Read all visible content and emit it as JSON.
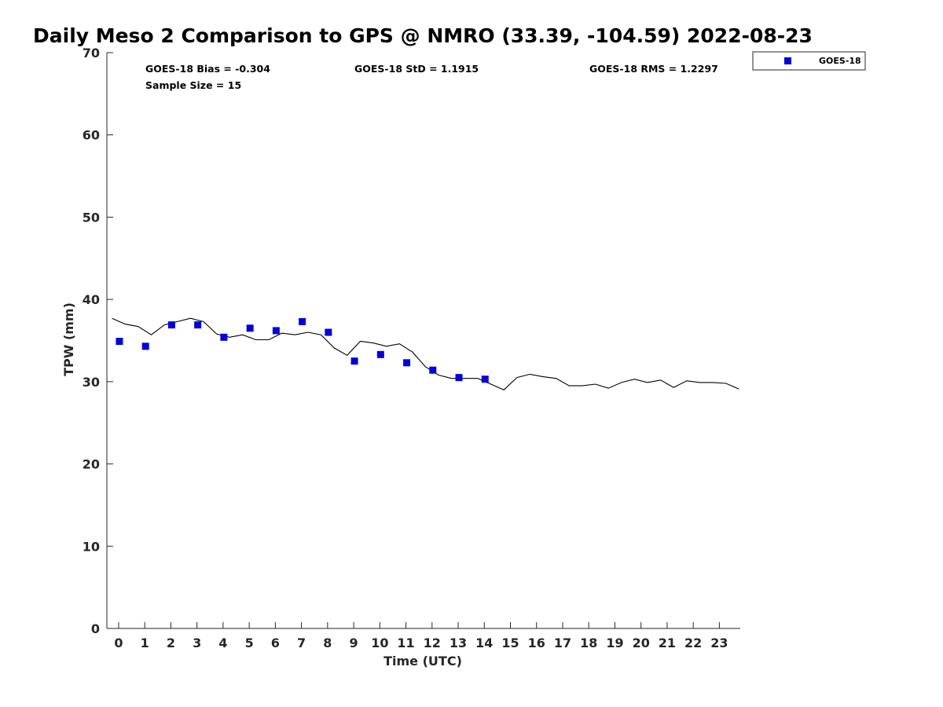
{
  "chart_data": {
    "type": "scatter",
    "title": "Daily Meso 2 Comparison to GPS @ NMRO (33.39, -104.59) 2022-08-23",
    "xlabel": "Time (UTC)",
    "ylabel": "TPW (mm)",
    "xlim": [
      -0.45,
      23.8
    ],
    "ylim": [
      0,
      70
    ],
    "x_ticks": [
      0,
      1,
      2,
      3,
      4,
      5,
      6,
      7,
      8,
      9,
      10,
      11,
      12,
      13,
      14,
      15,
      16,
      17,
      18,
      19,
      20,
      21,
      22,
      23
    ],
    "y_ticks": [
      0,
      10,
      20,
      30,
      40,
      50,
      60,
      70
    ],
    "grid": false,
    "legend_placement": "outside-top-right",
    "stats": {
      "bias": "GOES-18 Bias = -0.304",
      "std": "GOES-18 StD = 1.1915",
      "rms": "GOES-18 RMS = 1.2297",
      "sample": "Sample Size = 15"
    },
    "series": [
      {
        "name": "GOES-18",
        "kind": "scatter",
        "color": "#0000dd",
        "marker": "square",
        "x": [
          0.03,
          1.03,
          2.03,
          3.03,
          4.03,
          5.03,
          6.03,
          7.03,
          8.03,
          9.03,
          10.03,
          11.03,
          12.03,
          13.03,
          14.03
        ],
        "y": [
          34.9,
          34.3,
          36.9,
          36.9,
          35.4,
          36.5,
          36.2,
          37.3,
          36.0,
          32.5,
          33.3,
          32.3,
          31.4,
          30.5,
          30.3
        ]
      },
      {
        "kind": "line",
        "color": "#000000",
        "x": [
          -0.25,
          0.25,
          0.75,
          1.25,
          1.75,
          2.25,
          2.75,
          3.25,
          3.75,
          4.25,
          4.75,
          5.25,
          5.75,
          6.25,
          6.75,
          7.25,
          7.75,
          8.25,
          8.75,
          9.25,
          9.75,
          10.25,
          10.75,
          11.25,
          11.75,
          12.25,
          12.75,
          13.25,
          13.75,
          14.25,
          14.75,
          15.25,
          15.75,
          16.25,
          16.75,
          17.25,
          17.75,
          18.25,
          18.75,
          19.25,
          19.75,
          20.25,
          20.75,
          21.25,
          21.75,
          22.25,
          22.75,
          23.25,
          23.75
        ],
        "y": [
          37.7,
          37.0,
          36.7,
          35.7,
          36.9,
          37.3,
          37.7,
          37.3,
          35.8,
          35.4,
          35.7,
          35.1,
          35.1,
          35.9,
          35.7,
          36.0,
          35.7,
          34.1,
          33.2,
          34.9,
          34.7,
          34.3,
          34.6,
          33.6,
          31.8,
          30.8,
          30.4,
          30.4,
          30.4,
          29.7,
          29.0,
          30.5,
          30.9,
          30.6,
          30.4,
          29.5,
          29.5,
          29.7,
          29.2,
          29.9,
          30.3,
          29.9,
          30.2,
          29.3,
          30.1,
          29.9,
          29.9,
          29.8,
          29.1
        ]
      }
    ]
  }
}
